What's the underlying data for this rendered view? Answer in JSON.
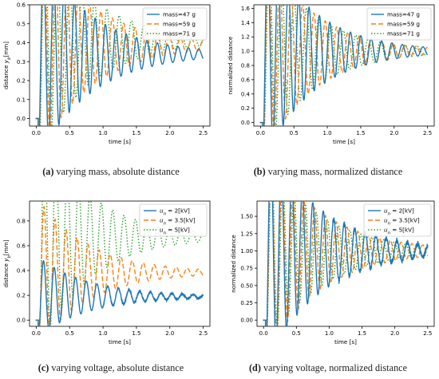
{
  "chart_data": [
    {
      "type": "line",
      "panel": "a",
      "caption_letter": "(a)",
      "caption_text": "varying mass, absolute distance",
      "xlabel": "time [s]",
      "ylabel": "distance y_b[mm]",
      "xlim": [
        -0.1,
        2.6
      ],
      "ylim": [
        -0.04,
        0.6
      ],
      "xticks": [
        0.0,
        0.5,
        1.0,
        1.5,
        2.0,
        2.5
      ],
      "yticks": [
        0.0,
        0.1,
        0.2,
        0.3,
        0.4,
        0.5,
        0.6
      ],
      "ytick_format": 1,
      "legend_position": "top-right",
      "grid": false,
      "series": [
        {
          "name": "mass=47 g",
          "style": "solid",
          "color": "#1f77b4",
          "final": 0.34,
          "peak": 0.55,
          "t0": 0.03,
          "period": 0.155,
          "decay": 1.25,
          "noise": 0.0
        },
        {
          "name": "mass=59 g",
          "style": "dashed",
          "color": "#ff7f0e",
          "final": 0.385,
          "peak": 0.58,
          "t0": 0.035,
          "period": 0.17,
          "decay": 1.25,
          "noise": 0.0
        },
        {
          "name": "mass=71 g",
          "style": "dotted",
          "color": "#2ca02c",
          "final": 0.41,
          "peak": 0.6,
          "t0": 0.04,
          "period": 0.185,
          "decay": 1.25,
          "noise": 0.0
        }
      ]
    },
    {
      "type": "line",
      "panel": "b",
      "caption_letter": "(b)",
      "caption_text": "varying mass, normalized distance",
      "xlabel": "time [s]",
      "ylabel": "normalized distance",
      "xlim": [
        -0.1,
        2.6
      ],
      "ylim": [
        -0.05,
        1.65
      ],
      "xticks": [
        0.0,
        0.5,
        1.0,
        1.5,
        2.0,
        2.5
      ],
      "yticks": [
        0.0,
        0.2,
        0.4,
        0.6,
        0.8,
        1.0,
        1.2,
        1.4,
        1.6
      ],
      "ytick_format": 1,
      "legend_position": "top-right",
      "grid": false,
      "series": [
        {
          "name": "mass=47 g",
          "style": "solid",
          "color": "#1f77b4",
          "final": 1.0,
          "peak": 1.58,
          "t0": 0.03,
          "period": 0.155,
          "decay": 1.35,
          "noise": 0.0
        },
        {
          "name": "mass=59 g",
          "style": "dashed",
          "color": "#ff7f0e",
          "final": 1.0,
          "peak": 1.5,
          "t0": 0.035,
          "period": 0.17,
          "decay": 1.35,
          "noise": 0.0
        },
        {
          "name": "mass=71 g",
          "style": "dotted",
          "color": "#2ca02c",
          "final": 1.0,
          "peak": 1.46,
          "t0": 0.04,
          "period": 0.185,
          "decay": 1.35,
          "noise": 0.0
        }
      ]
    },
    {
      "type": "line",
      "panel": "c",
      "caption_letter": "(c)",
      "caption_text": "varying voltage, absolute distance",
      "xlabel": "time [s]",
      "ylabel": "distance y_b[mm]",
      "xlim": [
        -0.1,
        2.6
      ],
      "ylim": [
        -0.05,
        0.96
      ],
      "xticks": [
        0.0,
        0.5,
        1.0,
        1.5,
        2.0,
        2.5
      ],
      "yticks": [
        0.0,
        0.2,
        0.4,
        0.6,
        0.8
      ],
      "ytick_format": 1,
      "legend_position": "top-right",
      "grid": false,
      "series": [
        {
          "name": "u_n = 2[kV]",
          "style": "solid",
          "color": "#1f77b4",
          "final": 0.19,
          "peak": 0.32,
          "t0": 0.03,
          "period": 0.16,
          "decay": 1.3,
          "noise": 0.012
        },
        {
          "name": "u_n = 3.5[kV]",
          "style": "dashed",
          "color": "#ff7f0e",
          "final": 0.385,
          "peak": 0.59,
          "t0": 0.035,
          "period": 0.165,
          "decay": 1.3,
          "noise": 0.0
        },
        {
          "name": "u_n = 5[kV]",
          "style": "dotted",
          "color": "#2ca02c",
          "final": 0.67,
          "peak": 0.92,
          "t0": 0.04,
          "period": 0.17,
          "decay": 1.3,
          "noise": 0.0
        }
      ]
    },
    {
      "type": "line",
      "panel": "d",
      "caption_letter": "(d)",
      "caption_text": "varying voltage, normalized distance",
      "xlabel": "time [s]",
      "ylabel": "normalized distance",
      "xlim": [
        -0.1,
        2.6
      ],
      "ylim": [
        -0.09,
        1.72
      ],
      "xticks": [
        0.0,
        0.5,
        1.0,
        1.5,
        2.0,
        2.5
      ],
      "yticks": [
        0.0,
        0.25,
        0.5,
        0.75,
        1.0,
        1.25,
        1.5
      ],
      "ytick_format": 2,
      "legend_position": "top-right",
      "grid": false,
      "series": [
        {
          "name": "u_n = 2[kV]",
          "style": "solid",
          "color": "#1f77b4",
          "final": 1.0,
          "peak": 1.65,
          "t0": 0.03,
          "period": 0.16,
          "decay": 1.2,
          "noise": 0.05
        },
        {
          "name": "u_n = 3.5[kV]",
          "style": "dashed",
          "color": "#ff7f0e",
          "final": 1.0,
          "peak": 1.52,
          "t0": 0.035,
          "period": 0.165,
          "decay": 1.2,
          "noise": 0.0
        },
        {
          "name": "u_n = 5[kV]",
          "style": "dotted",
          "color": "#2ca02c",
          "final": 1.0,
          "peak": 1.38,
          "t0": 0.04,
          "period": 0.17,
          "decay": 1.2,
          "noise": 0.0
        }
      ]
    }
  ]
}
